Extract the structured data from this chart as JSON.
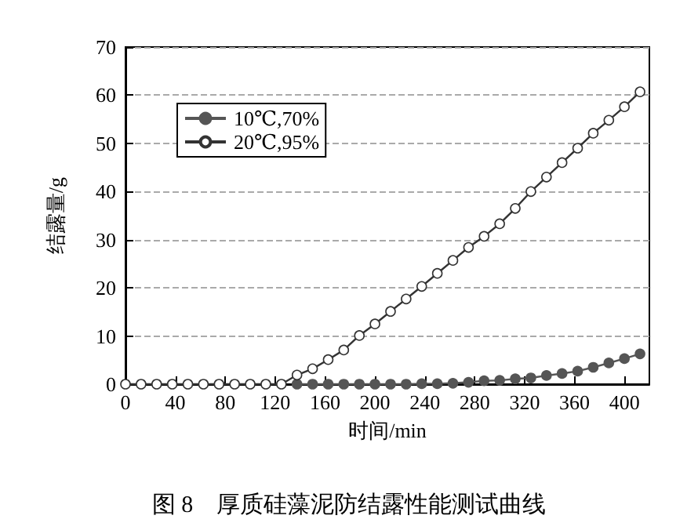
{
  "chart_data": {
    "type": "line",
    "xlabel": "时间/min",
    "ylabel": "结露量/g",
    "annotations": [
      "图 8　厚质硅藻泥防结露性能测试曲线"
    ],
    "x": [
      0,
      12.5,
      25,
      37.5,
      50,
      62.5,
      75,
      87.5,
      100,
      112.5,
      125,
      137.5,
      150,
      162.5,
      175,
      187.5,
      200,
      212.5,
      225,
      237.5,
      250,
      262.5,
      275,
      287.5,
      300,
      312.5,
      325,
      337.5,
      350,
      362.5,
      375,
      387.5,
      400,
      412.5
    ],
    "series": [
      {
        "name": "10℃,70%",
        "color": "#555555",
        "values": [
          null,
          null,
          null,
          null,
          null,
          null,
          null,
          null,
          null,
          null,
          null,
          0,
          0,
          0,
          0,
          0,
          0,
          0,
          0,
          0.1,
          0.1,
          0.2,
          0.4,
          0.7,
          0.8,
          1.1,
          1.3,
          1.8,
          2.2,
          2.7,
          3.5,
          4.4,
          5.3,
          6.3
        ]
      },
      {
        "name": "20℃,95%",
        "color": "#ffffff",
        "values": [
          0,
          0,
          0,
          0,
          0,
          0,
          0,
          0,
          0,
          0,
          0,
          1.9,
          3.2,
          5.1,
          7.1,
          10.1,
          12.5,
          15.1,
          17.7,
          20.3,
          23,
          25.7,
          28.4,
          30.7,
          33.3,
          36.5,
          40,
          43,
          46,
          49,
          52.1,
          54.8,
          57.6,
          60.7
        ]
      }
    ],
    "xlim": [
      0,
      420
    ],
    "xticks": [
      0,
      40,
      80,
      120,
      160,
      200,
      240,
      280,
      320,
      360,
      400
    ],
    "ylim": [
      0,
      70
    ],
    "yticks": [
      0,
      10,
      20,
      30,
      40,
      50,
      60,
      70
    ],
    "grid": "y",
    "legend": "top left",
    "marker": "circle"
  }
}
